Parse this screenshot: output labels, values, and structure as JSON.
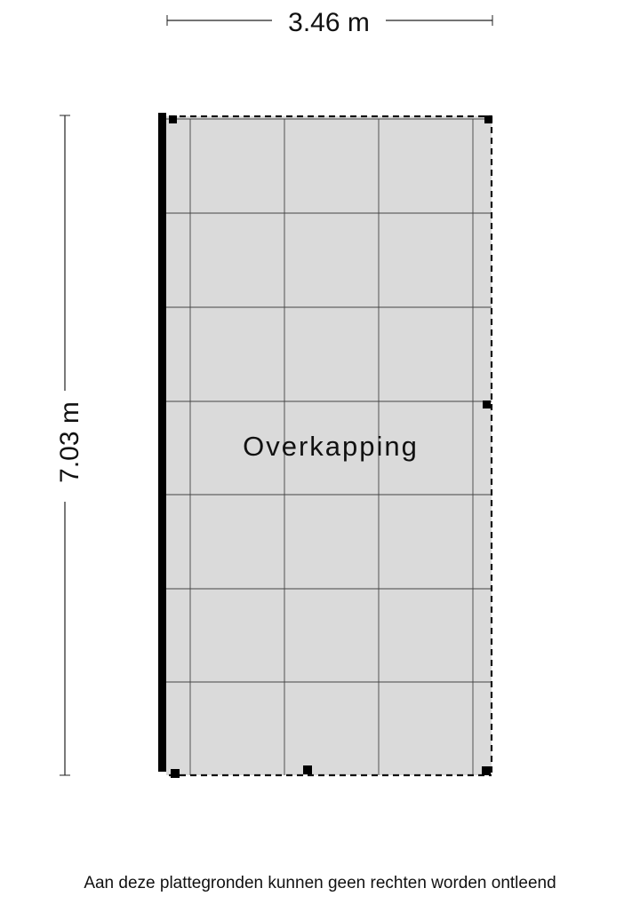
{
  "dimensions": {
    "width": "3.46 m",
    "height": "7.03 m"
  },
  "room": {
    "label": "Overkapping",
    "fill_color": "#dadada"
  },
  "footer": {
    "disclaimer": "Aan deze plattegronden kunnen geen rechten worden ontleend"
  }
}
